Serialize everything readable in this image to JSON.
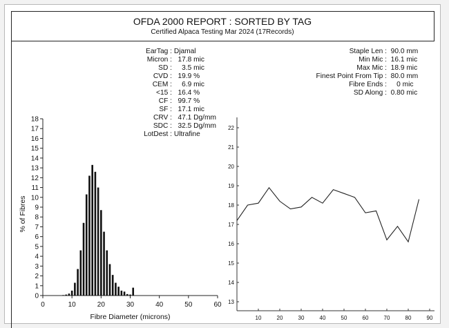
{
  "report": {
    "title": "OFDA 2000 REPORT : SORTED BY TAG",
    "subtitle": "Certified Alpaca Testing Mar 2024 (17Records)"
  },
  "stats_left": [
    {
      "label": "EarTag :",
      "value": " Djamal"
    },
    {
      "label": "Micron :",
      "value": "   17.8 mic"
    },
    {
      "label": "SD :",
      "value": "     3.5 mic"
    },
    {
      "label": "CVD :",
      "value": "   19.9 %"
    },
    {
      "label": "CEM :",
      "value": "     6.9 mic"
    },
    {
      "label": "<15 :",
      "value": "   16.4 %"
    },
    {
      "label": "CF :",
      "value": "   99.7 %"
    },
    {
      "label": "SF :",
      "value": "   17.1 mic"
    },
    {
      "label": "CRV :",
      "value": "   47.1 Dg/mm"
    },
    {
      "label": "SDC :",
      "value": "   32.5 Dg/mm"
    },
    {
      "label": "LotDest :",
      "value": " Ultrafine"
    }
  ],
  "stats_right": [
    {
      "label": "Staple Len :",
      "value": "  90.0 mm"
    },
    {
      "label": "Min Mic :",
      "value": "  16.1 mic"
    },
    {
      "label": "Max Mic :",
      "value": "  18.9 mic"
    },
    {
      "label": "Finest Point From Tip :",
      "value": "  80.0 mm"
    },
    {
      "label": "Fibre Ends :",
      "value": "     0 mic"
    },
    {
      "label": "SD Along :",
      "value": "  0.80 mic"
    }
  ],
  "chart_data": [
    {
      "type": "bar",
      "title": "",
      "xlabel": "Fibre Diameter (microns)",
      "ylabel": "% of Fibres",
      "xlim": [
        0,
        60
      ],
      "ylim": [
        0,
        18
      ],
      "x_ticks": [
        0,
        10,
        20,
        30,
        40,
        50,
        60
      ],
      "y_ticks": [
        0,
        1,
        2,
        3,
        4,
        5,
        6,
        7,
        8,
        9,
        10,
        11,
        12,
        13,
        14,
        15,
        16,
        17,
        18
      ],
      "x": [
        7,
        8,
        9,
        10,
        11,
        12,
        13,
        14,
        15,
        16,
        17,
        18,
        19,
        20,
        21,
        22,
        23,
        24,
        25,
        26,
        27,
        28,
        29,
        30,
        31
      ],
      "values": [
        0.05,
        0.1,
        0.2,
        0.5,
        1.3,
        2.7,
        4.6,
        7.4,
        10.3,
        12.2,
        13.3,
        12.6,
        11.0,
        8.7,
        6.5,
        4.6,
        3.2,
        2.1,
        1.3,
        0.9,
        0.5,
        0.4,
        0.15,
        0.1,
        0.8
      ],
      "grid": false
    },
    {
      "type": "line",
      "title": "",
      "xlabel": "",
      "ylabel": "",
      "xlim": [
        0,
        90
      ],
      "ylim": [
        13,
        22.5
      ],
      "x_ticks": [
        10,
        20,
        30,
        40,
        50,
        60,
        70,
        80,
        90
      ],
      "y_ticks": [
        13,
        14,
        15,
        16,
        17,
        18,
        19,
        20,
        21,
        22
      ],
      "x": [
        0,
        5,
        10,
        15,
        20,
        25,
        30,
        35,
        40,
        45,
        50,
        55,
        60,
        65,
        70,
        75,
        80,
        85
      ],
      "values": [
        17.2,
        18.0,
        18.1,
        18.9,
        18.2,
        17.8,
        17.9,
        18.4,
        18.1,
        18.8,
        18.6,
        18.4,
        17.6,
        17.7,
        16.2,
        16.9,
        16.1,
        18.3
      ],
      "grid": false
    }
  ]
}
